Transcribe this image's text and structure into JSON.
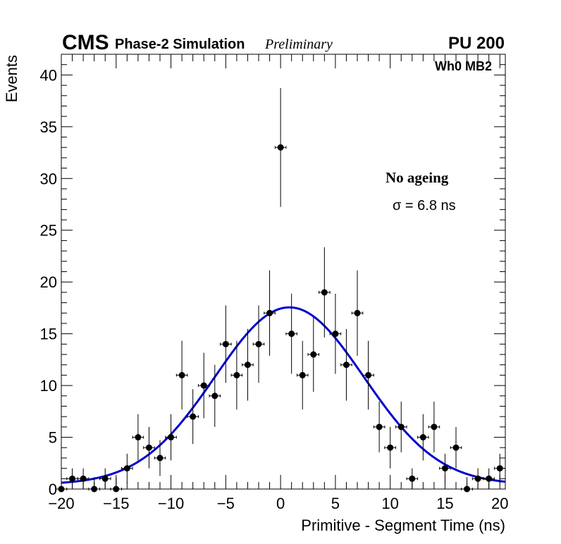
{
  "header": {
    "experiment": "CMS",
    "subtitle": "Phase-2 Simulation",
    "status": "Preliminary",
    "pileup": "PU 200"
  },
  "annotations": {
    "chamber": "Wh0 MB2",
    "condition": "No ageing",
    "sigma": "σ = 6.8 ns"
  },
  "chart_data": {
    "type": "scatter",
    "title": "",
    "xlabel": "Primitive - Segment Time (ns)",
    "ylabel": "Events",
    "xlim": [
      -20,
      20.5
    ],
    "ylim": [
      0,
      42
    ],
    "xticks": [
      -20,
      -15,
      -10,
      -5,
      0,
      5,
      10,
      15,
      20
    ],
    "yticks": [
      0,
      5,
      10,
      15,
      20,
      25,
      30,
      35,
      40
    ],
    "xtick_labels": [
      "−20",
      "−15",
      "−10",
      "−5",
      "0",
      "5",
      "10",
      "15",
      "20"
    ],
    "ytick_labels": [
      "0",
      "5",
      "10",
      "15",
      "20",
      "25",
      "30",
      "35",
      "40"
    ],
    "bin_width": 1,
    "series": [
      {
        "name": "Primitive - Segment Time",
        "marker": "circle",
        "color": "#000000",
        "x": [
          -20,
          -19,
          -18,
          -17,
          -16,
          -15,
          -14,
          -13,
          -12,
          -11,
          -10,
          -9,
          -8,
          -7,
          -6,
          -5,
          -4,
          -3,
          -2,
          -1,
          0,
          1,
          2,
          3,
          4,
          5,
          6,
          7,
          8,
          9,
          10,
          11,
          12,
          13,
          14,
          15,
          16,
          17,
          18,
          19,
          20
        ],
        "y": [
          0,
          1,
          1,
          0,
          1,
          0,
          2,
          5,
          4,
          3,
          5,
          11,
          7,
          10,
          9,
          14,
          11,
          12,
          14,
          17,
          33,
          15,
          11,
          13,
          19,
          15,
          12,
          17,
          11,
          6,
          4,
          6,
          1,
          5,
          6,
          2,
          4,
          0,
          1,
          1,
          2
        ]
      }
    ],
    "fit": {
      "name": "Gaussian fit",
      "color": "#0000cc",
      "amplitude": 17.1,
      "mean": 0.8,
      "sigma": 6.8,
      "baseline": 0.45
    }
  }
}
